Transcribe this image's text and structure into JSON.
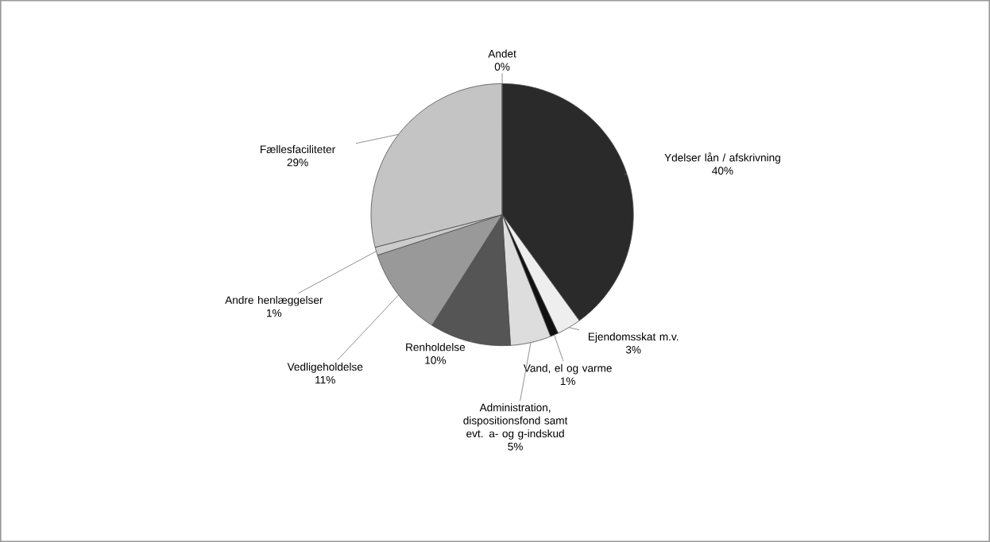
{
  "chart_data": {
    "type": "pie",
    "categories": [
      "Ydelser lån / afskrivning",
      "Ejendomsskat m.v.",
      "Vand, el og varme",
      "Administration, dispositionsfond samt evt. a- og g-indskud",
      "Renholdelse",
      "Vedligeholdelse",
      "Andre henlæggelser",
      "Fællesfaciliteter",
      "Andet"
    ],
    "values": [
      40,
      3,
      1,
      5,
      10,
      11,
      1,
      29,
      0
    ],
    "value_labels": [
      "40%",
      "3%",
      "1%",
      "5%",
      "10%",
      "11%",
      "1%",
      "29%",
      "0%"
    ],
    "colors": [
      "#2a2a2a",
      "#eeeeee",
      "#111111",
      "#dddddd",
      "#555555",
      "#999999",
      "#cccccc",
      "#c4c4c4",
      "#ffffff"
    ]
  }
}
